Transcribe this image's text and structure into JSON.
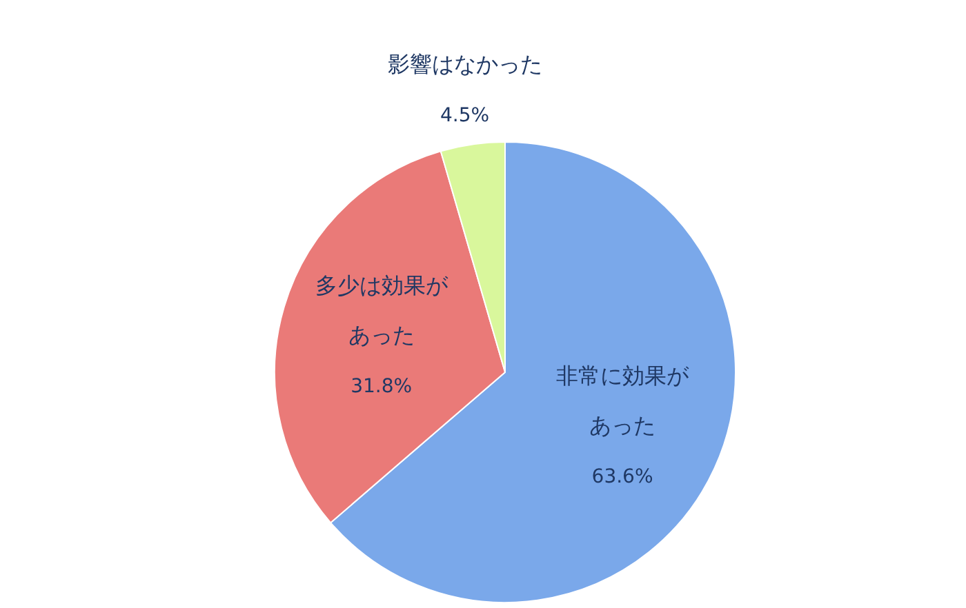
{
  "chart_data": {
    "type": "pie",
    "categories": [
      "非常に効果があった",
      "多少は効果があった",
      "影響はなかった"
    ],
    "values": [
      63.6,
      31.8,
      4.5
    ],
    "value_labels": [
      "63.6%",
      "31.8%",
      "4.5%"
    ],
    "colors": [
      "#7aa8ea",
      "#ea7a78",
      "#d9f79c"
    ]
  }
}
